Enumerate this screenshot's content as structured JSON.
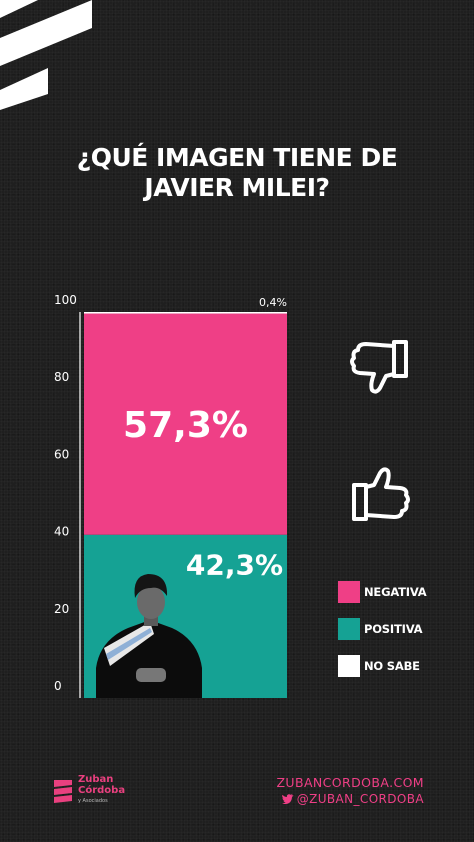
{
  "title_lines": [
    "¿QUÉ IMAGEN TIENE DE",
    "JAVIER MILEI?"
  ],
  "chart_data": {
    "type": "bar",
    "stacked": true,
    "categories": [
      ""
    ],
    "series": [
      {
        "name": "POSITIVA",
        "values": [
          42.3
        ],
        "color": "#15a294",
        "label": "42,3%"
      },
      {
        "name": "NEGATIVA",
        "values": [
          57.3
        ],
        "color": "#ef3f86",
        "label": "57,3%"
      },
      {
        "name": "NO SABE",
        "values": [
          0.4
        ],
        "color": "#ffffff",
        "label": "0,4%"
      }
    ],
    "yticks": [
      "0",
      "20",
      "40",
      "60",
      "80",
      "100"
    ],
    "ylim": [
      0,
      100
    ],
    "grid": false,
    "legend": "right"
  },
  "icons": {
    "negative": "thumbs-down-icon",
    "positive": "thumbs-up-icon",
    "photo": "portrait-icon"
  },
  "legend": [
    {
      "label": "NEGATIVA",
      "color": "#ef3f86"
    },
    {
      "label": "POSITIVA",
      "color": "#15a294"
    },
    {
      "label": "NO SABE",
      "color": "#ffffff"
    }
  ],
  "footer": {
    "brand_line1": "Zuban",
    "brand_line2": "Córdoba",
    "brand_tag": "y Asociados",
    "website": "ZUBANCORDOBA.COM",
    "twitter": "@ZUBAN_CORDOBA"
  }
}
